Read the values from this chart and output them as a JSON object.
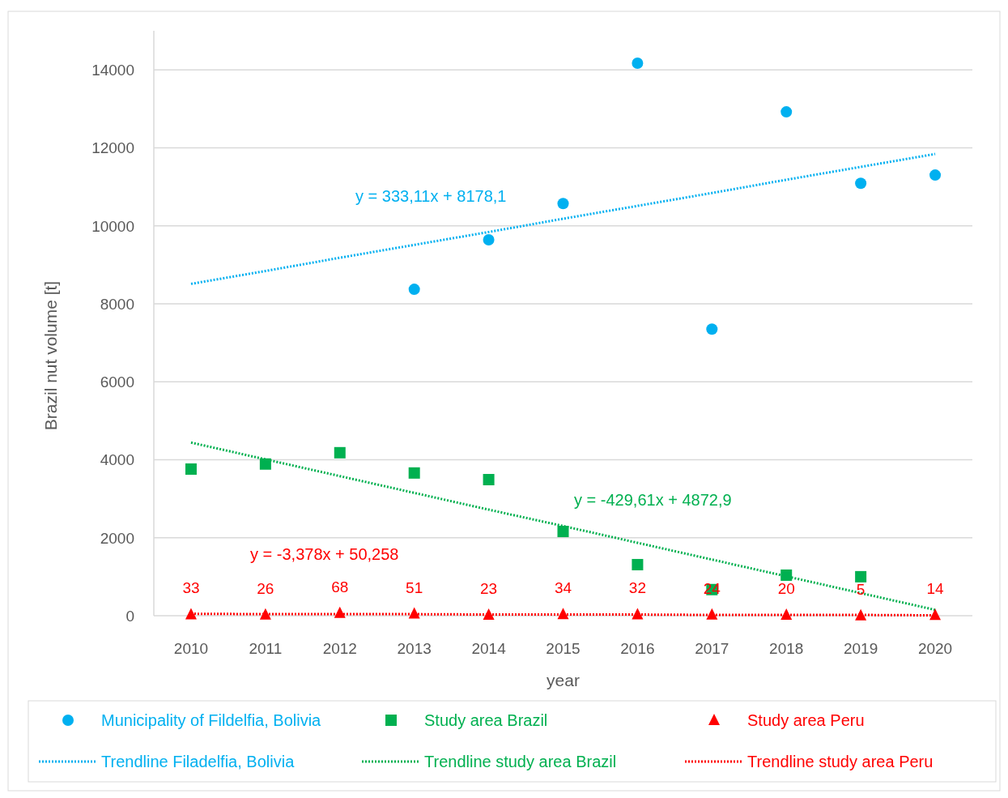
{
  "chart_data": {
    "type": "scatter",
    "xlabel": "year",
    "ylabel": "Brazil nut volume [t]",
    "x": [
      2010,
      2011,
      2012,
      2013,
      2014,
      2015,
      2016,
      2017,
      2018,
      2019,
      2020
    ],
    "xlim": [
      2009.5,
      2020.5
    ],
    "xticks": [
      2010,
      2011,
      2012,
      2013,
      2014,
      2015,
      2016,
      2017,
      2018,
      2019,
      2020
    ],
    "ylim": [
      0,
      15000
    ],
    "yticks": [
      0,
      2000,
      4000,
      6000,
      8000,
      10000,
      12000,
      14000
    ],
    "grid": "y",
    "legend": "bottom",
    "series": [
      {
        "name": "Municipality of Fildelfia, Bolivia",
        "marker": "circle",
        "color": "#00b0f0",
        "values": [
          null,
          null,
          null,
          8370,
          9640,
          10570,
          14170,
          7350,
          12920,
          11090,
          11300
        ]
      },
      {
        "name": "Study area Brazil",
        "marker": "square",
        "color": "#00b050",
        "values": [
          3760,
          3890,
          4180,
          3660,
          3490,
          2160,
          1310,
          670,
          1040,
          1000,
          null
        ]
      },
      {
        "name": "Study area Peru",
        "marker": "triangle",
        "color": "#ff0000",
        "values": [
          33,
          26,
          68,
          51,
          23,
          34,
          32,
          24,
          20,
          5,
          14
        ],
        "value_labels": [
          "33",
          "26",
          "68",
          "51",
          "23",
          "34",
          "32",
          "24",
          "20",
          "5",
          "14"
        ]
      },
      {
        "name": "Trendline Filadelfia, Bolivia",
        "type": "line",
        "line_style": "dotted",
        "marker": "none",
        "color": "#00b0f0",
        "values": [
          8510,
          8840,
          9180,
          9510,
          9840,
          10180,
          10510,
          10840,
          11180,
          11510,
          11840
        ]
      },
      {
        "name": "Trendline study area Brazil",
        "type": "line",
        "line_style": "dotted",
        "marker": "none",
        "color": "#00b050",
        "values": [
          4440,
          4010,
          3580,
          3150,
          2720,
          2300,
          1870,
          1440,
          1010,
          580,
          150
        ]
      },
      {
        "name": "Trendline study area Peru",
        "type": "line",
        "line_style": "dotted",
        "marker": "none",
        "color": "#ff0000",
        "values": [
          50,
          40,
          40,
          40,
          30,
          30,
          30,
          20,
          20,
          20,
          10
        ]
      }
    ],
    "annotations": [
      "y = 333,11x + 8178,1",
      "y = -429,61x + 4872,9",
      "y = -3,378x + 50,258"
    ]
  }
}
